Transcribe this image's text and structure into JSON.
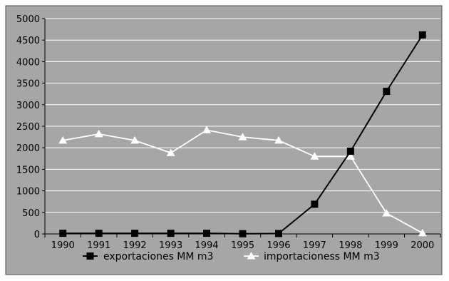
{
  "chart_data": {
    "type": "line",
    "categories": [
      "1990",
      "1991",
      "1992",
      "1993",
      "1994",
      "1995",
      "1996",
      "1997",
      "1998",
      "1999",
      "2000"
    ],
    "series": [
      {
        "name": "exportaciones MM m3",
        "values": [
          15,
          15,
          15,
          15,
          15,
          5,
          10,
          690,
          1920,
          3310,
          4620
        ],
        "color": "#000000",
        "marker": "square"
      },
      {
        "name": "importacioness MM m3",
        "values": [
          2170,
          2320,
          2170,
          1880,
          2410,
          2250,
          2170,
          1800,
          1800,
          480,
          20
        ],
        "color": "#ffffff",
        "marker": "triangle"
      }
    ],
    "yticks": [
      "0",
      "500",
      "1000",
      "1500",
      "2000",
      "2500",
      "3000",
      "3500",
      "4000",
      "4500",
      "5000"
    ],
    "ylim": [
      0,
      5000
    ],
    "grid": true,
    "legend_position": "bottom",
    "colors": {
      "plot_background": "#a6a6a6",
      "frame_background": "#a6a6a6",
      "grid": "#ffffff",
      "text": "#000000"
    }
  }
}
